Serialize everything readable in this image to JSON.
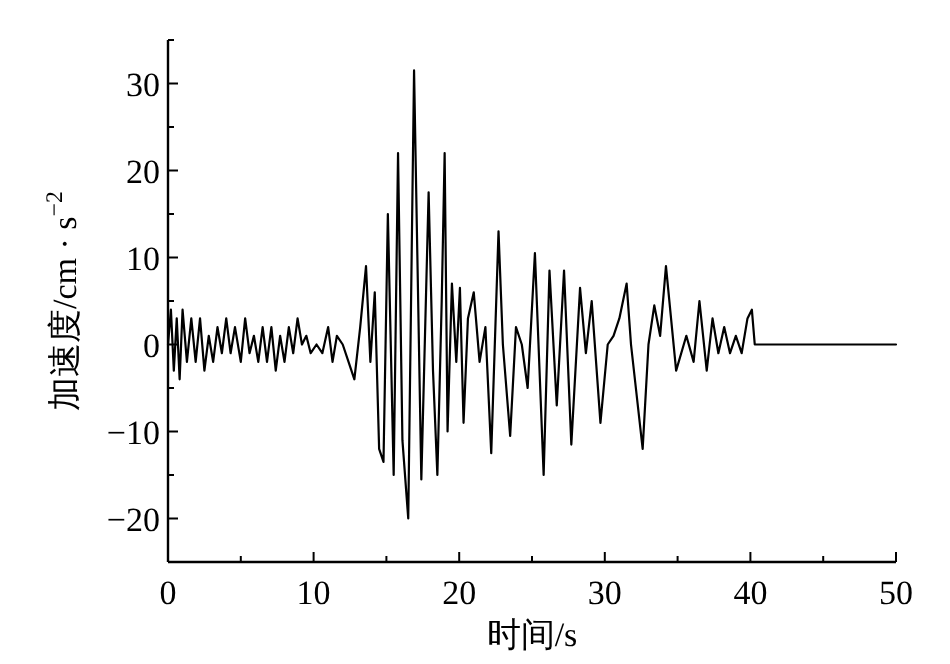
{
  "chart_data": {
    "type": "line",
    "xlabel": "时间/s",
    "ylabel": "加速度/cm · s$^{−2}$",
    "xlim": [
      0,
      50
    ],
    "ylim": [
      -25,
      35
    ],
    "xticks": [
      0,
      {
        "value": 5,
        "label": null
      },
      10,
      {
        "value": 15,
        "label": null
      },
      20,
      {
        "value": 25,
        "label": null
      },
      30,
      {
        "value": 35,
        "label": null
      },
      40,
      {
        "value": 45,
        "label": null
      },
      50
    ],
    "yticks": [
      {
        "value": -25,
        "label": null
      },
      -20,
      {
        "value": -15,
        "label": null
      },
      -10,
      {
        "value": -5,
        "label": null
      },
      0,
      {
        "value": 5,
        "label": null
      },
      10,
      {
        "value": 15,
        "label": null
      },
      20,
      {
        "value": 25,
        "label": null
      },
      30,
      {
        "value": 35,
        "label": null
      }
    ],
    "grid": false,
    "marker": "none",
    "line_style": "solid",
    "series": [
      {
        "color": "#000000",
        "x": [
          0,
          0.2,
          0.4,
          0.6,
          0.8,
          1.0,
          1.3,
          1.6,
          1.9,
          2.2,
          2.5,
          2.8,
          3.1,
          3.4,
          3.7,
          4.0,
          4.3,
          4.6,
          5.0,
          5.3,
          5.6,
          5.9,
          6.2,
          6.5,
          6.8,
          7.1,
          7.4,
          7.7,
          8.0,
          8.3,
          8.6,
          8.9,
          9.2,
          9.5,
          9.8,
          10.2,
          10.6,
          11.0,
          11.3,
          11.6,
          12.0,
          12.4,
          12.8,
          13.2,
          13.6,
          13.9,
          14.2,
          14.5,
          14.8,
          15.1,
          15.5,
          15.8,
          16.1,
          16.5,
          16.9,
          17.4,
          17.9,
          18.2,
          18.5,
          18.8,
          19.0,
          19.2,
          19.5,
          19.8,
          20.05,
          20.3,
          20.6,
          21.0,
          21.4,
          21.8,
          22.2,
          22.7,
          23.0,
          23.5,
          23.9,
          24.3,
          24.7,
          25.2,
          25.8,
          26.2,
          26.7,
          27.2,
          27.7,
          28.3,
          28.7,
          29.1,
          29.7,
          30.2,
          30.6,
          31.0,
          31.5,
          31.8,
          32.6,
          33.0,
          33.4,
          33.8,
          34.2,
          34.9,
          35.6,
          36.1,
          36.5,
          37.0,
          37.4,
          37.8,
          38.2,
          38.6,
          39.0,
          39.4,
          39.8,
          40.1,
          40.3,
          50
        ],
        "values": [
          0,
          4,
          -3,
          3,
          -4,
          4,
          -2,
          3,
          -2,
          3,
          -3,
          1,
          -2,
          2,
          -1,
          3,
          -1,
          2,
          -2,
          3,
          -1,
          1,
          -2,
          2,
          -2,
          2,
          -3,
          1,
          -2,
          2,
          -1,
          3,
          0,
          1,
          -1,
          0,
          -1,
          2,
          -2,
          1,
          0,
          -2,
          -4,
          2,
          9,
          -2,
          6,
          -12,
          -13.5,
          15,
          -15,
          22,
          -11,
          -20,
          31.5,
          -15.5,
          17.5,
          -3,
          -15,
          5,
          22,
          -10,
          7,
          -2,
          6.5,
          -9,
          3,
          6,
          -2,
          2,
          -12.5,
          13,
          0,
          -10.5,
          2,
          0,
          -5,
          10.5,
          -15,
          8.5,
          -7,
          8.5,
          -11.5,
          6.5,
          -1,
          5,
          -9,
          0,
          1,
          3,
          7,
          0,
          -12,
          0,
          4.5,
          1,
          9,
          -3,
          1,
          -2,
          5,
          -3,
          3,
          -1,
          2,
          -1,
          1,
          -1,
          3,
          4,
          0,
          0
        ]
      }
    ]
  }
}
